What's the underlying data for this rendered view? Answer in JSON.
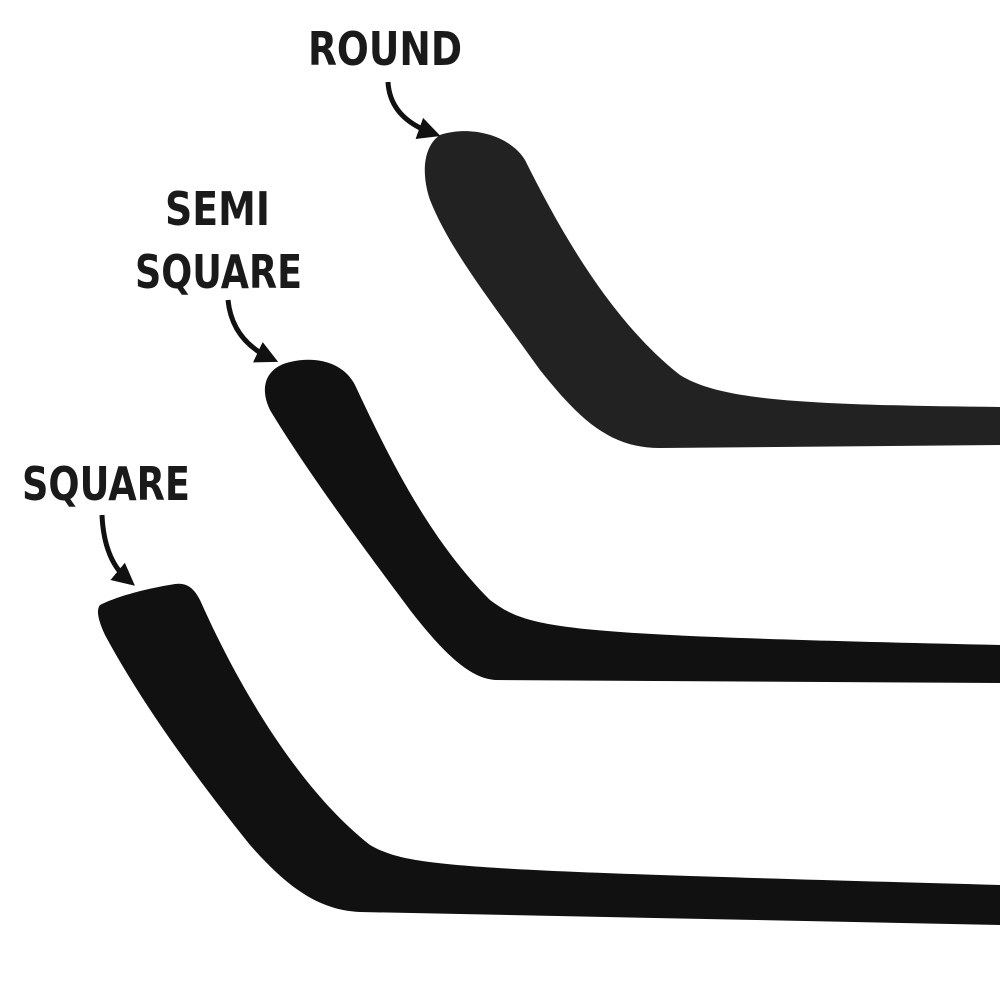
{
  "blades": [
    {
      "label": [
        "ROUND"
      ]
    },
    {
      "label": [
        "SEMI",
        "SQUARE"
      ]
    },
    {
      "label": [
        "SQUARE"
      ]
    }
  ]
}
